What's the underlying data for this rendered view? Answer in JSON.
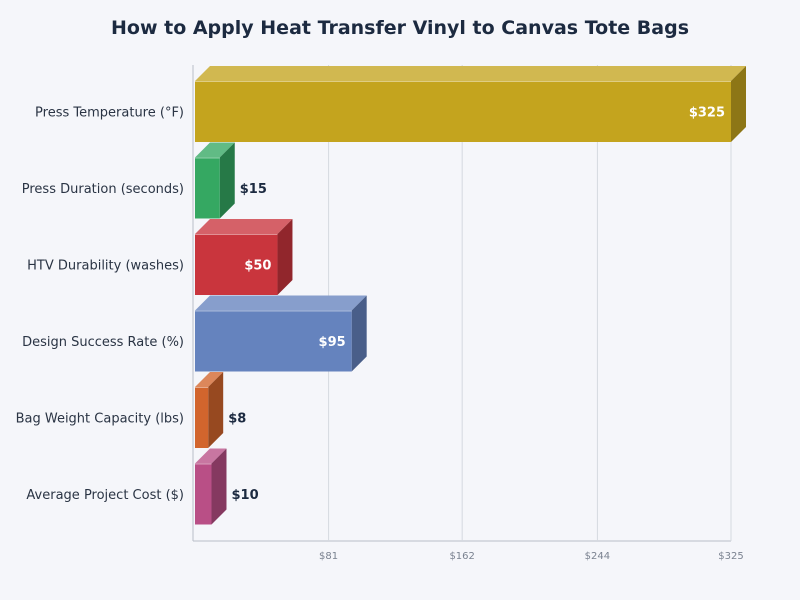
{
  "chart_data": {
    "type": "bar",
    "orientation": "horizontal",
    "title": "How to Apply Heat Transfer Vinyl to Canvas Tote Bags",
    "xlabel": "",
    "ylabel": "",
    "xlim": [
      0,
      325
    ],
    "grid": true,
    "x_ticks": [
      {
        "value": 81,
        "label": "$81"
      },
      {
        "value": 162,
        "label": "$162"
      },
      {
        "value": 244,
        "label": "$244"
      },
      {
        "value": 325,
        "label": "$325"
      }
    ],
    "categories": [
      "Press Temperature (°F)",
      "Press Duration (seconds)",
      "HTV Durability (washes)",
      "Design Success Rate (%)",
      "Bag Weight Capacity (lbs)",
      "Average Project Cost ($)"
    ],
    "values": [
      325,
      15,
      50,
      95,
      8,
      10
    ],
    "value_labels": [
      "$325",
      "$15",
      "$50",
      "$95",
      "$8",
      "$10"
    ],
    "colors": [
      "#c4a41e",
      "#35a862",
      "#c9353d",
      "#6583be",
      "#d2652d",
      "#b94f86"
    ]
  }
}
